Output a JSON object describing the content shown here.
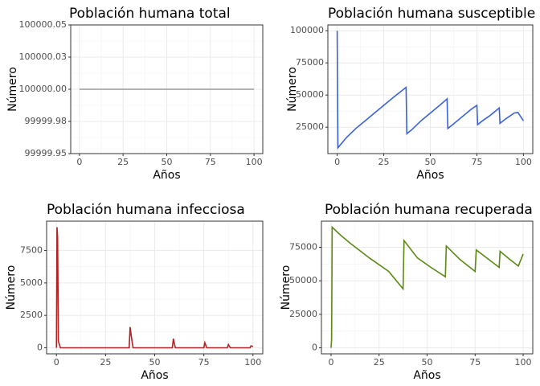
{
  "chart_data": [
    {
      "type": "line",
      "title": "Población humana total",
      "xlabel": "Años",
      "ylabel": "Número",
      "color": "#999999",
      "grid": true,
      "x": [
        0,
        100
      ],
      "values": [
        100000,
        100000
      ],
      "xlim": [
        -5,
        105
      ],
      "xticks": [
        0,
        25,
        50,
        75,
        100
      ],
      "ylim": [
        99999.95,
        100000.05
      ],
      "yticks": [
        99999.95,
        {
          "value": 99999.975,
          "label": "99999.98"
        },
        {
          "value": 100000,
          "label": "100000.00"
        },
        {
          "value": 100000.025,
          "label": "100000.03"
        },
        100000.05
      ]
    },
    {
      "type": "line",
      "title": "Población humana susceptible",
      "xlabel": "Años",
      "ylabel": "Número",
      "color": "#3a63d8",
      "grid": true,
      "x": [
        0,
        0.4,
        5,
        10,
        15,
        20,
        25,
        30,
        37,
        37.4,
        40,
        45,
        50,
        55,
        59,
        59.4,
        62,
        67,
        72,
        75,
        75.4,
        78,
        82,
        87,
        87.4,
        90,
        95,
        97,
        100
      ],
      "values": [
        100000,
        9000,
        17000,
        24000,
        30000,
        36000,
        42000,
        48000,
        56000,
        20000,
        23000,
        30000,
        36000,
        42000,
        47000,
        24000,
        27000,
        33000,
        39000,
        42000,
        27000,
        30000,
        34000,
        40000,
        28000,
        31000,
        36000,
        36500,
        30000
      ],
      "xlim": [
        -5,
        105
      ],
      "xticks": [
        0,
        25,
        50,
        75,
        100
      ],
      "ylim": [
        4500,
        104500
      ],
      "yticks": [
        25000,
        50000,
        75000,
        100000
      ]
    },
    {
      "type": "line",
      "title": "Población humana infecciosa",
      "xlabel": "Años",
      "ylabel": "Número",
      "color": "#b22222",
      "grid": true,
      "x": [
        0,
        0.3,
        0.6,
        1,
        2,
        37,
        37.5,
        38,
        39,
        59,
        59.5,
        60.5,
        75,
        75.5,
        76.5,
        87,
        87.5,
        88.5,
        98.5,
        99,
        100
      ],
      "values": [
        0,
        9300,
        8500,
        500,
        0,
        0,
        1600,
        1000,
        0,
        0,
        700,
        0,
        0,
        400,
        0,
        0,
        250,
        0,
        0,
        150,
        100
      ],
      "xlim": [
        -5,
        105
      ],
      "xticks": [
        0,
        25,
        50,
        75,
        100
      ],
      "ylim": [
        -465,
        9765
      ],
      "yticks": [
        0,
        2500,
        5000,
        7500
      ]
    },
    {
      "type": "line",
      "title": "Población humana recuperada",
      "xlabel": "Años",
      "ylabel": "Número",
      "color": "#5a8a14",
      "grid": true,
      "x": [
        0,
        0.3,
        0.6,
        5,
        10,
        20,
        30,
        37.5,
        38,
        45,
        52,
        59.5,
        60,
        67,
        75,
        75.6,
        82,
        87.5,
        88,
        93,
        97.5,
        100
      ],
      "values": [
        0,
        6000,
        90000,
        84000,
        78000,
        67000,
        57000,
        44000,
        80000,
        67000,
        60000,
        53000,
        76000,
        66000,
        57000,
        73000,
        66000,
        60000,
        72000,
        66000,
        61000,
        70000
      ],
      "xlim": [
        -5,
        105
      ],
      "xticks": [
        0,
        25,
        50,
        75,
        100
      ],
      "ylim": [
        -4500,
        94500
      ],
      "yticks": [
        0,
        25000,
        50000,
        75000
      ]
    }
  ]
}
